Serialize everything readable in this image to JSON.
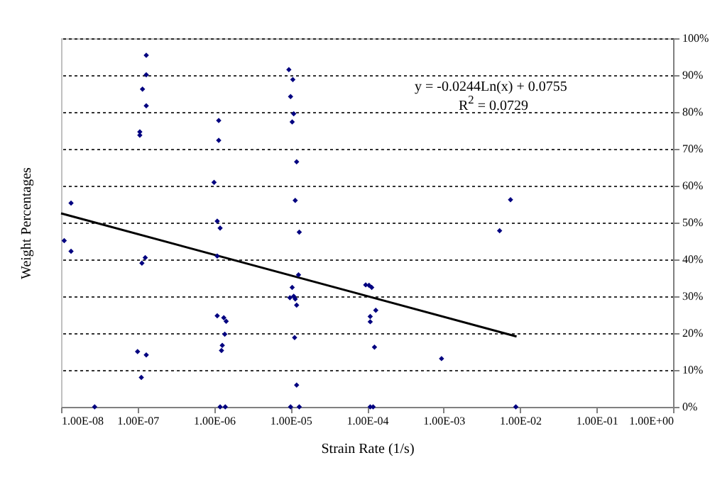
{
  "chart_data": {
    "type": "scatter",
    "xlabel": "Strain Rate (1/s)",
    "ylabel": "Weight Percentages",
    "annotations": [
      "y = -0.0244Ln(x) + 0.0755",
      "R$^{2}$ = 0.0729"
    ],
    "log": "x",
    "grid": "y",
    "marker": "diamond",
    "xlim": [
      1e-08,
      1
    ],
    "xticks": [
      {
        "value": 1e-08,
        "label": "1.00E-08"
      },
      {
        "value": 1e-07,
        "label": "1.00E-07"
      },
      {
        "value": 1e-06,
        "label": "1.00E-06"
      },
      {
        "value": 1e-05,
        "label": "1.00E-05"
      },
      {
        "value": 0.0001,
        "label": "1.00E-04"
      },
      {
        "value": 0.001,
        "label": "1.00E-03"
      },
      {
        "value": 0.01,
        "label": "1.00E-02"
      },
      {
        "value": 0.1,
        "label": "1.00E-01"
      },
      {
        "value": 1,
        "label": "1.00E+00"
      }
    ],
    "ylim": [
      0,
      100
    ],
    "yticks": [
      {
        "value": 0,
        "label": "0%"
      },
      {
        "value": 10,
        "label": "10%"
      },
      {
        "value": 20,
        "label": "20%"
      },
      {
        "value": 30,
        "label": "30%"
      },
      {
        "value": 40,
        "label": "40%"
      },
      {
        "value": 50,
        "label": "50%"
      },
      {
        "value": 60,
        "label": "60%"
      },
      {
        "value": 70,
        "label": "70%"
      },
      {
        "value": 80,
        "label": "80%"
      },
      {
        "value": 90,
        "label": "90%"
      },
      {
        "value": 100,
        "label": "100%"
      }
    ],
    "series": [
      {
        "color": "#000080",
        "x": [
          1.3e-07,
          1.3e-07,
          1.16e-07,
          1.3e-07,
          1.07e-07,
          1.07e-07,
          1.15e-06,
          1.15e-06,
          1e-06,
          1.1e-06,
          1.2e-06,
          1.1e-06,
          1.35e-08,
          1.1e-08,
          1.35e-08,
          1.14e-07,
          1.26e-07,
          1.1e-06,
          1.34e-06,
          1.44e-06,
          1.38e-06,
          1.28e-06,
          1.25e-06,
          1e-07,
          1.3e-07,
          1.12e-07,
          2.75e-08,
          1.2e-06,
          1.4e-06,
          9.5e-06,
          1.07e-05,
          1e-05,
          1.1e-05,
          1.05e-05,
          1.2e-05,
          1.15e-05,
          1.3e-05,
          1.27e-05,
          1.05e-05,
          9.8e-06,
          1.1e-05,
          1.15e-05,
          1.2e-05,
          1.13e-05,
          1.2e-05,
          1e-05,
          1.3e-05,
          9.6e-05,
          0.000106,
          0.000115,
          0.00011,
          0.00011,
          0.00013,
          0.000125,
          0.00094,
          0.00011,
          0.00012,
          0.0075,
          0.0054,
          0.0088
        ],
        "values": [
          95.4,
          90.1,
          86.2,
          81.7,
          74.6,
          73.7,
          77.7,
          72.3,
          60.9,
          50.4,
          48.5,
          40.9,
          55.3,
          45.1,
          42.2,
          39.0,
          40.5,
          24.7,
          24.2,
          23.2,
          19.7,
          16.7,
          15.3,
          15.0,
          14.1,
          8.0,
          0,
          0,
          0,
          91.5,
          88.8,
          84.2,
          79.5,
          77.3,
          66.5,
          56.0,
          47.4,
          35.8,
          32.4,
          29.6,
          30.0,
          29.3,
          27.6,
          18.8,
          5.9,
          0,
          0,
          33.1,
          33.0,
          32.4,
          24.5,
          23.1,
          26.2,
          16.2,
          13.1,
          0,
          0,
          56.2,
          47.8,
          0
        ]
      },
      {
        "type": "line",
        "marker": "none",
        "color": "#000000",
        "x": [
          1e-08,
          0.009
        ],
        "values": [
          52.5,
          19.1
        ]
      }
    ]
  }
}
